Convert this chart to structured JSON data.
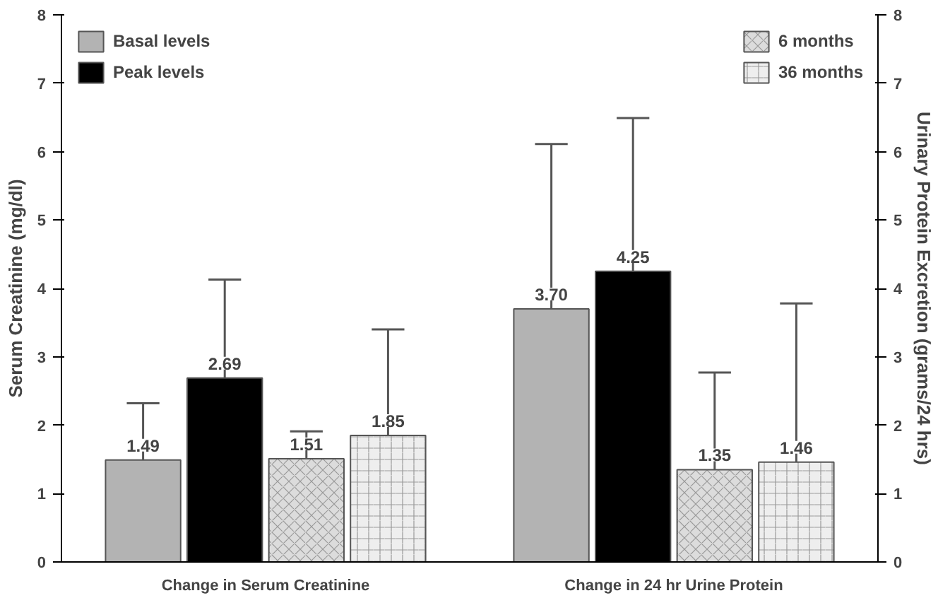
{
  "chart_data": {
    "type": "bar",
    "ylabel": "Serum Creatinine (mg/dl)",
    "y2label": "Urinary Protein Excretion (grams/24 hrs)",
    "categories": [
      "Change in Serum Creatinine",
      "Change in 24 hr Urine Protein"
    ],
    "series": [
      {
        "name": "Basal levels",
        "color": "#b3b3b3",
        "values": [
          1.49,
          3.7
        ],
        "errors": [
          [
            1.49,
            2.32
          ],
          [
            3.7,
            6.11
          ]
        ],
        "value_labels": [
          "1.49",
          "3.70"
        ]
      },
      {
        "name": "Peak levels",
        "color": "#000000",
        "values": [
          2.69,
          4.25
        ],
        "errors": [
          [
            2.69,
            4.13
          ],
          [
            4.25,
            6.49
          ]
        ],
        "value_labels": [
          "2.69",
          "4.25"
        ]
      },
      {
        "name": "6 months",
        "color": "#dcdcdc",
        "values": [
          1.51,
          1.35
        ],
        "errors": [
          [
            1.51,
            1.91
          ],
          [
            1.35,
            2.77
          ]
        ],
        "value_labels": [
          "1.51",
          "1.35"
        ]
      },
      {
        "name": "36 months",
        "color": "#eeeeee",
        "values": [
          1.85,
          1.46
        ],
        "errors": [
          [
            1.85,
            3.4
          ],
          [
            1.46,
            3.78
          ]
        ],
        "value_labels": [
          "1.85",
          "1.46"
        ]
      }
    ],
    "ylim": [
      0,
      8
    ],
    "yticks": [
      0,
      1,
      2,
      3,
      4,
      5,
      6,
      7,
      8
    ],
    "y2lim": [
      0,
      8
    ],
    "y2ticks": [
      0,
      1,
      2,
      3,
      4,
      5,
      6,
      7,
      8
    ],
    "legend": "top",
    "grid": false
  }
}
